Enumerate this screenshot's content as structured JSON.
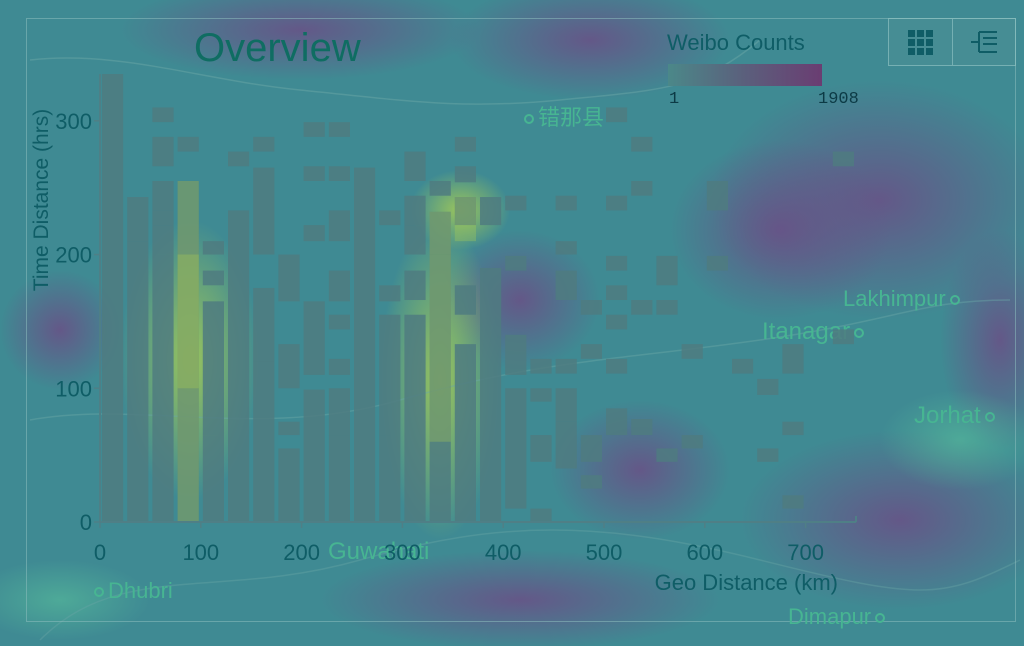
{
  "header": {
    "title": "Overview"
  },
  "legend": {
    "title": "Weibo Counts",
    "min_label": "1",
    "max_label": "1908",
    "low_color": "#4b8889",
    "high_color": "#6a3d72"
  },
  "toolbar": {
    "buttons": [
      {
        "icon": "grid-icon"
      },
      {
        "icon": "tree-list-icon"
      }
    ]
  },
  "map_labels": [
    {
      "text": "错那县"
    },
    {
      "text": "Lakhimpur"
    },
    {
      "text": "Itanagar"
    },
    {
      "text": "Jorhat"
    },
    {
      "text": "Guwahati"
    },
    {
      "text": "Dhubri"
    },
    {
      "text": "Dimapur"
    }
  ],
  "colors": {
    "background": "#3f8a93",
    "bar": "#4f7b80",
    "axis_text": "#0f5d66",
    "hot": "#b8d84a"
  },
  "chart_data": {
    "type": "heatmap",
    "title": "Overview",
    "xlabel": "Geo Distance (km)",
    "ylabel": "Time Distance (hrs)",
    "xlim": [
      0,
      750
    ],
    "ylim": [
      0,
      335
    ],
    "x_ticks": [
      0,
      100,
      200,
      300,
      400,
      500,
      600,
      700
    ],
    "y_ticks": [
      0,
      100,
      200,
      300
    ],
    "grid": false,
    "legend": "top-right",
    "bin_width_km": 25,
    "bin_height_hrs": 11,
    "cells": [
      [
        0,
        0,
        335
      ],
      [
        25,
        0,
        210
      ],
      [
        25,
        210,
        243
      ],
      [
        50,
        0,
        200
      ],
      [
        50,
        200,
        222
      ],
      [
        50,
        222,
        233
      ],
      [
        50,
        233,
        255
      ],
      [
        50,
        266,
        288
      ],
      [
        50,
        299,
        310
      ],
      [
        75,
        0,
        255
      ],
      [
        75,
        277,
        288
      ],
      [
        100,
        0,
        65
      ],
      [
        100,
        65,
        165
      ],
      [
        100,
        177,
        188
      ],
      [
        100,
        200,
        210
      ],
      [
        125,
        0,
        233
      ],
      [
        125,
        266,
        277
      ],
      [
        150,
        0,
        120
      ],
      [
        150,
        120,
        175
      ],
      [
        150,
        200,
        265
      ],
      [
        150,
        277,
        288
      ],
      [
        175,
        0,
        55
      ],
      [
        175,
        65,
        75
      ],
      [
        175,
        100,
        133
      ],
      [
        175,
        165,
        200
      ],
      [
        200,
        0,
        99
      ],
      [
        200,
        110,
        165
      ],
      [
        200,
        210,
        222
      ],
      [
        200,
        255,
        266
      ],
      [
        200,
        288,
        299
      ],
      [
        225,
        0,
        65
      ],
      [
        225,
        65,
        100
      ],
      [
        225,
        110,
        122
      ],
      [
        225,
        144,
        155
      ],
      [
        225,
        165,
        188
      ],
      [
        225,
        210,
        233
      ],
      [
        225,
        255,
        266
      ],
      [
        225,
        288,
        299
      ],
      [
        250,
        0,
        265
      ],
      [
        275,
        0,
        65
      ],
      [
        275,
        65,
        155
      ],
      [
        275,
        165,
        177
      ],
      [
        275,
        222,
        233
      ],
      [
        300,
        0,
        155
      ],
      [
        300,
        166,
        188
      ],
      [
        300,
        200,
        222
      ],
      [
        300,
        222,
        244
      ],
      [
        300,
        255,
        277
      ],
      [
        325,
        0,
        232
      ],
      [
        325,
        244,
        255
      ],
      [
        350,
        0,
        133
      ],
      [
        350,
        155,
        177
      ],
      [
        350,
        222,
        243
      ],
      [
        350,
        254,
        266
      ],
      [
        350,
        277,
        288
      ],
      [
        375,
        0,
        190
      ],
      [
        375,
        222,
        243
      ],
      [
        400,
        10,
        100
      ],
      [
        400,
        110,
        140
      ],
      [
        400,
        188,
        199
      ],
      [
        400,
        233,
        244
      ],
      [
        425,
        0,
        10
      ],
      [
        425,
        45,
        65
      ],
      [
        425,
        90,
        100
      ],
      [
        425,
        111,
        122
      ],
      [
        450,
        40,
        75
      ],
      [
        450,
        75,
        100
      ],
      [
        450,
        111,
        122
      ],
      [
        450,
        166,
        188
      ],
      [
        450,
        200,
        210
      ],
      [
        450,
        233,
        244
      ],
      [
        475,
        25,
        35
      ],
      [
        475,
        45,
        65
      ],
      [
        475,
        122,
        133
      ],
      [
        475,
        155,
        166
      ],
      [
        500,
        65,
        85
      ],
      [
        500,
        111,
        122
      ],
      [
        500,
        144,
        155
      ],
      [
        500,
        166,
        177
      ],
      [
        500,
        188,
        199
      ],
      [
        500,
        233,
        244
      ],
      [
        500,
        299,
        310
      ],
      [
        525,
        65,
        77
      ],
      [
        525,
        155,
        166
      ],
      [
        525,
        244,
        255
      ],
      [
        525,
        277,
        288
      ],
      [
        550,
        45,
        55
      ],
      [
        550,
        155,
        166
      ],
      [
        550,
        177,
        199
      ],
      [
        575,
        55,
        65
      ],
      [
        575,
        122,
        133
      ],
      [
        600,
        188,
        199
      ],
      [
        600,
        233,
        255
      ],
      [
        625,
        111,
        122
      ],
      [
        650,
        95,
        107
      ],
      [
        650,
        45,
        55
      ],
      [
        675,
        111,
        133
      ],
      [
        675,
        65,
        75
      ],
      [
        675,
        10,
        20
      ],
      [
        725,
        133,
        144
      ],
      [
        725,
        266,
        277
      ]
    ],
    "hot_cells": [
      [
        75,
        0,
        255
      ],
      [
        75,
        100,
        200
      ],
      [
        325,
        60,
        200
      ],
      [
        325,
        200,
        232
      ],
      [
        350,
        210,
        243
      ]
    ]
  }
}
